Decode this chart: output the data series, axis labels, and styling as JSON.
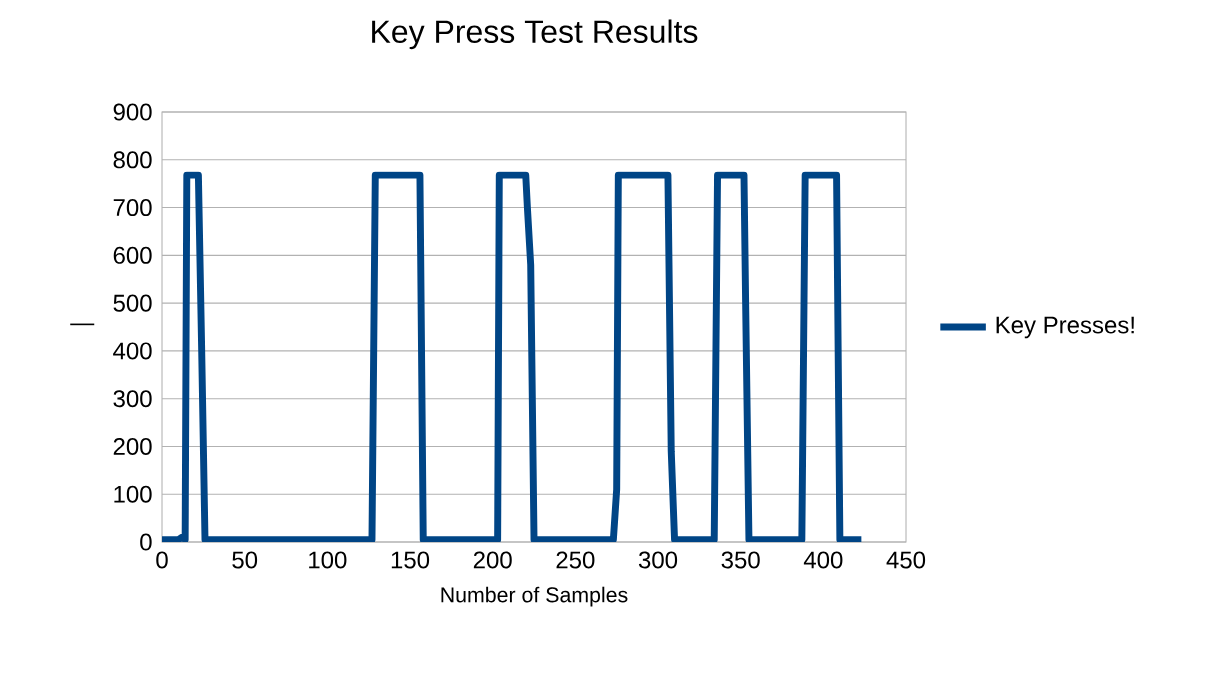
{
  "chart_data": {
    "type": "line",
    "title": "Key Press Test Results",
    "xlabel": "Number of Samples",
    "ylabel": "—",
    "xlim": [
      0,
      450
    ],
    "xticks": [
      0,
      50,
      100,
      150,
      200,
      250,
      300,
      350,
      400,
      450
    ],
    "ylim": [
      0,
      900
    ],
    "yticks": [
      0,
      100,
      200,
      300,
      400,
      500,
      600,
      700,
      800,
      900
    ],
    "grid": "y",
    "legend": "right",
    "marker": "none",
    "line_style": "solid",
    "series": [
      {
        "name": "Key Presses!",
        "color": "#004586",
        "x": [
          0,
          10,
          12,
          14,
          15,
          22,
          24,
          26,
          40,
          100,
          115,
          127,
          129,
          156,
          158,
          200,
          203,
          204,
          220,
          221,
          223,
          225,
          270,
          273,
          275,
          276,
          305,
          306,
          308,
          310,
          330,
          334,
          336,
          352,
          353,
          355,
          385,
          387,
          389,
          407,
          408,
          410,
          423
        ],
        "values": [
          5,
          5,
          10,
          5,
          768,
          768,
          400,
          5,
          5,
          5,
          5,
          5,
          768,
          768,
          5,
          5,
          5,
          768,
          768,
          700,
          580,
          5,
          5,
          5,
          110,
          768,
          768,
          768,
          190,
          5,
          5,
          5,
          768,
          768,
          500,
          5,
          5,
          5,
          768,
          768,
          768,
          5,
          5
        ]
      }
    ]
  }
}
